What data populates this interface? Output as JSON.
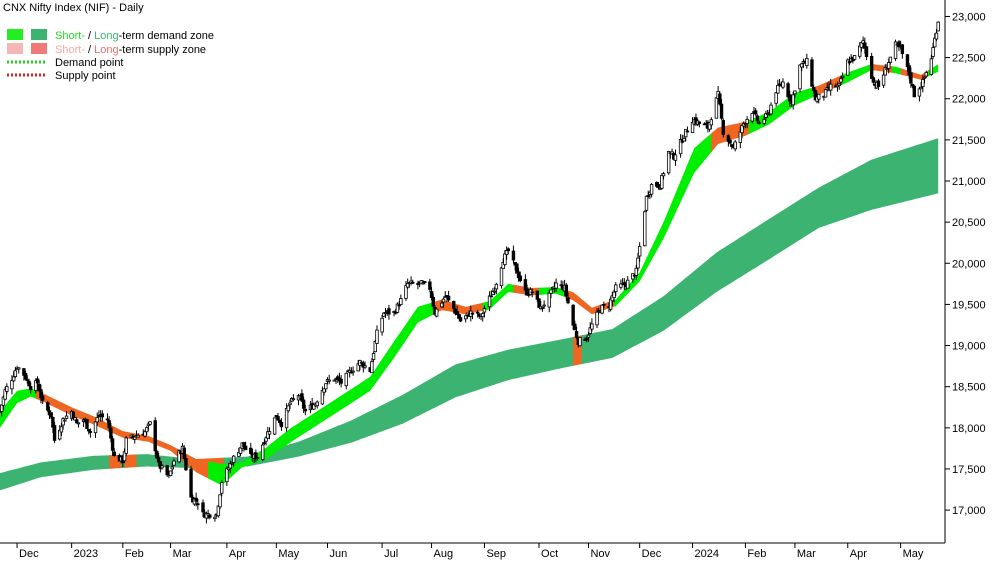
{
  "chart_data": {
    "type": "candlestick",
    "title": "CNX Nifty Index (NIF) - Daily",
    "legend": [
      {
        "id": "demand-zone",
        "parts": [
          {
            "text": "Short-",
            "color": "#22dd22"
          },
          {
            "text": " / ",
            "color": "#000000"
          },
          {
            "text": "Long",
            "color": "#3cb371"
          },
          {
            "text": "-term demand zone",
            "color": "#000000"
          }
        ]
      },
      {
        "id": "supply-zone",
        "parts": [
          {
            "text": "Short-",
            "color": "#f7a8a8"
          },
          {
            "text": " / ",
            "color": "#000000"
          },
          {
            "text": "Long",
            "color": "#f07070"
          },
          {
            "text": "-term supply zone",
            "color": "#000000"
          }
        ]
      },
      {
        "id": "demand-point",
        "parts": [
          {
            "text": "Demand point",
            "color": "#000000"
          }
        ]
      },
      {
        "id": "supply-point",
        "parts": [
          {
            "text": "Supply point",
            "color": "#000000"
          }
        ]
      }
    ],
    "legend_colors": {
      "short_demand": "#22ee22",
      "long_demand": "#3cb371",
      "short_supply": "#f7b6b6",
      "long_supply": "#f07a7a",
      "demand_point": "#22cc22",
      "supply_point": "#dd2222"
    },
    "colors": {
      "short_demand": "#00ee00",
      "long_demand": "#3cb371",
      "short_supply_light": "#f4b3b3",
      "short_supply_dark": "#ee6622",
      "long_supply": "#ee6622",
      "candle": "#000000"
    },
    "ylim": [
      16600,
      23200
    ],
    "xlim": [
      "2022-11-21",
      "2024-05-28"
    ],
    "y_ticks": [
      17000,
      17500,
      18000,
      18500,
      19000,
      19500,
      20000,
      20500,
      21000,
      21500,
      22000,
      22500,
      23000
    ],
    "y_tick_labels": [
      "17,000",
      "17,500",
      "18,000",
      "18,500",
      "19,000",
      "19,500",
      "20,000",
      "20,500",
      "21,000",
      "21,500",
      "22,000",
      "22,500",
      "23,000"
    ],
    "x_ticks": [
      {
        "date": "2022-12-01",
        "label": "Dec"
      },
      {
        "date": "2023-01-02",
        "label": "2023"
      },
      {
        "date": "2023-02-01",
        "label": "Feb"
      },
      {
        "date": "2023-03-01",
        "label": "Mar"
      },
      {
        "date": "2023-04-03",
        "label": "Apr"
      },
      {
        "date": "2023-05-02",
        "label": "May"
      },
      {
        "date": "2023-06-01",
        "label": "Jun"
      },
      {
        "date": "2023-07-03",
        "label": "Jul"
      },
      {
        "date": "2023-08-01",
        "label": "Aug"
      },
      {
        "date": "2023-09-01",
        "label": "Sep"
      },
      {
        "date": "2023-10-03",
        "label": "Oct"
      },
      {
        "date": "2023-11-01",
        "label": "Nov"
      },
      {
        "date": "2023-12-01",
        "label": "Dec"
      },
      {
        "date": "2024-01-01",
        "label": "2024"
      },
      {
        "date": "2024-02-01",
        "label": "Feb"
      },
      {
        "date": "2024-03-01",
        "label": "Mar"
      },
      {
        "date": "2024-04-01",
        "label": "Apr"
      },
      {
        "date": "2024-05-02",
        "label": "May"
      }
    ],
    "price_close": [
      [
        "2022-11-21",
        18200
      ],
      [
        "2022-11-24",
        18450
      ],
      [
        "2022-11-28",
        18600
      ],
      [
        "2022-12-01",
        18750
      ],
      [
        "2022-12-05",
        18650
      ],
      [
        "2022-12-09",
        18500
      ],
      [
        "2022-12-13",
        18550
      ],
      [
        "2022-12-16",
        18300
      ],
      [
        "2022-12-21",
        18150
      ],
      [
        "2022-12-23",
        17850
      ],
      [
        "2022-12-28",
        18100
      ],
      [
        "2023-01-02",
        18200
      ],
      [
        "2023-01-05",
        18050
      ],
      [
        "2023-01-09",
        18100
      ],
      [
        "2023-01-13",
        17950
      ],
      [
        "2023-01-18",
        18150
      ],
      [
        "2023-01-23",
        18100
      ],
      [
        "2023-01-27",
        17650
      ],
      [
        "2023-02-01",
        17600
      ],
      [
        "2023-02-03",
        17850
      ],
      [
        "2023-02-08",
        17900
      ],
      [
        "2023-02-14",
        17950
      ],
      [
        "2023-02-17",
        18050
      ],
      [
        "2023-02-22",
        17550
      ],
      [
        "2023-02-28",
        17400
      ],
      [
        "2023-03-03",
        17600
      ],
      [
        "2023-03-08",
        17750
      ],
      [
        "2023-03-13",
        17150
      ],
      [
        "2023-03-17",
        17100
      ],
      [
        "2023-03-20",
        16950
      ],
      [
        "2023-03-24",
        16950
      ],
      [
        "2023-03-28",
        16950
      ],
      [
        "2023-03-31",
        17350
      ],
      [
        "2023-04-06",
        17600
      ],
      [
        "2023-04-12",
        17800
      ],
      [
        "2023-04-17",
        17650
      ],
      [
        "2023-04-21",
        17650
      ],
      [
        "2023-04-26",
        17900
      ],
      [
        "2023-05-02",
        18150
      ],
      [
        "2023-05-05",
        18050
      ],
      [
        "2023-05-10",
        18300
      ],
      [
        "2023-05-15",
        18400
      ],
      [
        "2023-05-19",
        18200
      ],
      [
        "2023-05-25",
        18300
      ],
      [
        "2023-05-31",
        18550
      ],
      [
        "2023-06-05",
        18600
      ],
      [
        "2023-06-09",
        18550
      ],
      [
        "2023-06-15",
        18700
      ],
      [
        "2023-06-20",
        18800
      ],
      [
        "2023-06-26",
        18700
      ],
      [
        "2023-06-30",
        19150
      ],
      [
        "2023-07-04",
        19400
      ],
      [
        "2023-07-10",
        19400
      ],
      [
        "2023-07-14",
        19550
      ],
      [
        "2023-07-18",
        19750
      ],
      [
        "2023-07-21",
        19750
      ],
      [
        "2023-07-26",
        19750
      ],
      [
        "2023-07-31",
        19700
      ],
      [
        "2023-08-03",
        19400
      ],
      [
        "2023-08-09",
        19600
      ],
      [
        "2023-08-14",
        19450
      ],
      [
        "2023-08-18",
        19300
      ],
      [
        "2023-08-24",
        19400
      ],
      [
        "2023-08-30",
        19350
      ],
      [
        "2023-09-01",
        19450
      ],
      [
        "2023-09-07",
        19700
      ],
      [
        "2023-09-12",
        20050
      ],
      [
        "2023-09-15",
        20150
      ],
      [
        "2023-09-20",
        19900
      ],
      [
        "2023-09-25",
        19650
      ],
      [
        "2023-09-29",
        19650
      ],
      [
        "2023-10-04",
        19450
      ],
      [
        "2023-10-09",
        19600
      ],
      [
        "2023-10-13",
        19750
      ],
      [
        "2023-10-18",
        19700
      ],
      [
        "2023-10-23",
        19250
      ],
      [
        "2023-10-26",
        19050
      ],
      [
        "2023-10-31",
        19100
      ],
      [
        "2023-11-03",
        19250
      ],
      [
        "2023-11-08",
        19450
      ],
      [
        "2023-11-13",
        19500
      ],
      [
        "2023-11-17",
        19700
      ],
      [
        "2023-11-23",
        19750
      ],
      [
        "2023-11-29",
        19900
      ],
      [
        "2023-12-01",
        20200
      ],
      [
        "2023-12-05",
        20800
      ],
      [
        "2023-12-08",
        20950
      ],
      [
        "2023-12-13",
        20950
      ],
      [
        "2023-12-18",
        21350
      ],
      [
        "2023-12-21",
        21300
      ],
      [
        "2023-12-27",
        21550
      ],
      [
        "2024-01-01",
        21750
      ],
      [
        "2024-01-05",
        21700
      ],
      [
        "2024-01-10",
        21650
      ],
      [
        "2024-01-16",
        22050
      ],
      [
        "2024-01-19",
        21600
      ],
      [
        "2024-01-25",
        21400
      ],
      [
        "2024-01-31",
        21700
      ],
      [
        "2024-02-05",
        21850
      ],
      [
        "2024-02-09",
        21700
      ],
      [
        "2024-02-14",
        21800
      ],
      [
        "2024-02-19",
        22100
      ],
      [
        "2024-02-23",
        22200
      ],
      [
        "2024-02-28",
        21950
      ],
      [
        "2024-03-04",
        22400
      ],
      [
        "2024-03-08",
        22450
      ],
      [
        "2024-03-13",
        22000
      ],
      [
        "2024-03-18",
        22050
      ],
      [
        "2024-03-22",
        22150
      ],
      [
        "2024-03-27",
        22150
      ],
      [
        "2024-04-01",
        22450
      ],
      [
        "2024-04-05",
        22500
      ],
      [
        "2024-04-10",
        22700
      ],
      [
        "2024-04-16",
        22200
      ],
      [
        "2024-04-19",
        22150
      ],
      [
        "2024-04-24",
        22400
      ],
      [
        "2024-04-29",
        22650
      ],
      [
        "2024-05-02",
        22600
      ],
      [
        "2024-05-07",
        22300
      ],
      [
        "2024-05-10",
        22050
      ],
      [
        "2024-05-15",
        22200
      ],
      [
        "2024-05-20",
        22500
      ],
      [
        "2024-05-24",
        22950
      ]
    ],
    "short_term_zone": [
      [
        "2022-11-21",
        18000,
        18200
      ],
      [
        "2022-12-01",
        18300,
        18450
      ],
      [
        "2022-12-09",
        18380,
        18480
      ],
      [
        "2022-12-16",
        18320,
        18420
      ],
      [
        "2023-01-02",
        18150,
        18250
      ],
      [
        "2023-01-16",
        18030,
        18130
      ],
      [
        "2023-02-01",
        17880,
        17960
      ],
      [
        "2023-02-16",
        17830,
        17900
      ],
      [
        "2023-03-01",
        17720,
        17790
      ],
      [
        "2023-03-16",
        17460,
        17620
      ],
      [
        "2023-03-31",
        17300,
        17560
      ],
      [
        "2023-04-12",
        17520,
        17580
      ],
      [
        "2023-04-26",
        17620,
        17760
      ],
      [
        "2023-05-10",
        17820,
        17990
      ],
      [
        "2023-05-25",
        18020,
        18190
      ],
      [
        "2023-06-09",
        18220,
        18390
      ],
      [
        "2023-06-26",
        18450,
        18620
      ],
      [
        "2023-07-10",
        18850,
        19050
      ],
      [
        "2023-07-24",
        19280,
        19470
      ],
      [
        "2023-08-07",
        19430,
        19560
      ],
      [
        "2023-08-21",
        19380,
        19470
      ],
      [
        "2023-09-04",
        19440,
        19540
      ],
      [
        "2023-09-15",
        19650,
        19750
      ],
      [
        "2023-09-29",
        19610,
        19700
      ],
      [
        "2023-10-13",
        19630,
        19710
      ],
      [
        "2023-10-23",
        19550,
        19650
      ],
      [
        "2023-11-03",
        19380,
        19460
      ],
      [
        "2023-11-17",
        19480,
        19560
      ],
      [
        "2023-12-01",
        19780,
        19890
      ],
      [
        "2023-12-15",
        20300,
        20500
      ],
      [
        "2024-01-02",
        21100,
        21400
      ],
      [
        "2024-01-16",
        21450,
        21650
      ],
      [
        "2024-02-01",
        21550,
        21720
      ],
      [
        "2024-02-15",
        21690,
        21840
      ],
      [
        "2024-03-01",
        21920,
        22070
      ],
      [
        "2024-03-15",
        22050,
        22160
      ],
      [
        "2024-04-01",
        22200,
        22320
      ],
      [
        "2024-04-15",
        22350,
        22420
      ],
      [
        "2024-04-29",
        22310,
        22390
      ],
      [
        "2024-05-14",
        22230,
        22290
      ],
      [
        "2024-05-24",
        22330,
        22420
      ]
    ],
    "long_term_zone": [
      [
        "2022-11-21",
        17240,
        17450
      ],
      [
        "2022-12-15",
        17400,
        17580
      ],
      [
        "2023-01-15",
        17490,
        17660
      ],
      [
        "2023-02-15",
        17530,
        17680
      ],
      [
        "2023-03-15",
        17510,
        17620
      ],
      [
        "2023-04-15",
        17530,
        17650
      ],
      [
        "2023-05-15",
        17650,
        17830
      ],
      [
        "2023-06-15",
        17820,
        18090
      ],
      [
        "2023-07-15",
        18050,
        18400
      ],
      [
        "2023-08-15",
        18370,
        18770
      ],
      [
        "2023-09-15",
        18580,
        18950
      ],
      [
        "2023-10-15",
        18720,
        19070
      ],
      [
        "2023-11-15",
        18850,
        19200
      ],
      [
        "2023-12-15",
        19180,
        19600
      ],
      [
        "2024-01-15",
        19650,
        20130
      ],
      [
        "2024-02-15",
        20050,
        20540
      ],
      [
        "2024-03-15",
        20430,
        20920
      ],
      [
        "2024-04-15",
        20650,
        21260
      ],
      [
        "2024-05-24",
        20850,
        21520
      ]
    ],
    "short_term_supply_periods": [
      [
        "2022-12-12",
        "2023-03-22"
      ],
      [
        "2023-08-02",
        "2023-08-30"
      ],
      [
        "2023-09-18",
        "2023-10-02"
      ],
      [
        "2023-10-18",
        "2023-11-15"
      ],
      [
        "2024-01-12",
        "2024-02-02"
      ],
      [
        "2024-03-12",
        "2024-03-27"
      ],
      [
        "2024-04-16",
        "2024-04-26"
      ],
      [
        "2024-05-02",
        "2024-05-17"
      ]
    ],
    "long_term_supply_periods": [
      [
        "2023-01-24",
        "2023-01-30"
      ],
      [
        "2023-02-02",
        "2023-02-08"
      ],
      [
        "2023-03-14",
        "2023-03-31"
      ],
      [
        "2023-10-23",
        "2023-10-27"
      ]
    ]
  }
}
